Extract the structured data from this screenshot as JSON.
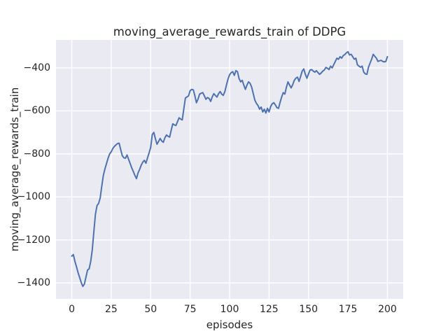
{
  "figure": {
    "title": "moving_average_rewards_train of DDPG",
    "xlabel": "episodes",
    "ylabel": "moving_average_rewards_train"
  },
  "style": {
    "figure_background": "#ffffff",
    "plot_background": "#eaeaf2",
    "grid_color": "#ffffff",
    "line_color": "#4c72b0",
    "text_color": "#262626"
  },
  "chart_data": {
    "type": "line",
    "title": "moving_average_rewards_train of DDPG",
    "xlabel": "episodes",
    "ylabel": "moving_average_rewards_train",
    "xlim": [
      -10,
      210
    ],
    "ylim": [
      -1474,
      -270
    ],
    "grid": true,
    "legend_position": "none",
    "xticks": {
      "values": [
        0,
        25,
        50,
        75,
        100,
        125,
        150,
        175,
        200
      ],
      "labels": [
        "0",
        "25",
        "50",
        "75",
        "100",
        "125",
        "150",
        "175",
        "200"
      ]
    },
    "yticks": {
      "values": [
        -400,
        -600,
        -800,
        -1000,
        -1200,
        -1400
      ],
      "labels": [
        "−400",
        "−600",
        "−800",
        "−1000",
        "−1200",
        "−1400"
      ]
    },
    "series": [
      {
        "name": "moving_average_rewards_train",
        "x": [
          0,
          1,
          2,
          3,
          4,
          5,
          6,
          7,
          8,
          9,
          10,
          11,
          12,
          13,
          14,
          15,
          16,
          17,
          18,
          19,
          20,
          21,
          22,
          23,
          24,
          25,
          26,
          27,
          28,
          29,
          30,
          31,
          32,
          33,
          34,
          35,
          36,
          37,
          38,
          39,
          40,
          41,
          42,
          43,
          44,
          45,
          46,
          47,
          48,
          49,
          50,
          51,
          52,
          53,
          54,
          55,
          56,
          57,
          58,
          59,
          60,
          61,
          62,
          63,
          64,
          65,
          66,
          67,
          68,
          69,
          70,
          71,
          72,
          73,
          74,
          75,
          76,
          77,
          78,
          79,
          80,
          81,
          82,
          83,
          84,
          85,
          86,
          87,
          88,
          89,
          90,
          91,
          92,
          93,
          94,
          95,
          96,
          97,
          98,
          99,
          100,
          101,
          102,
          103,
          104,
          105,
          106,
          107,
          108,
          109,
          110,
          111,
          112,
          113,
          114,
          115,
          116,
          117,
          118,
          119,
          120,
          121,
          122,
          123,
          124,
          125,
          126,
          127,
          128,
          129,
          130,
          131,
          132,
          133,
          134,
          135,
          136,
          137,
          138,
          139,
          140,
          141,
          142,
          143,
          144,
          145,
          146,
          147,
          148,
          149,
          150,
          151,
          152,
          153,
          154,
          155,
          156,
          157,
          158,
          159,
          160,
          161,
          162,
          163,
          164,
          165,
          166,
          167,
          168,
          169,
          170,
          171,
          172,
          173,
          174,
          175,
          176,
          177,
          178,
          179,
          180,
          181,
          182,
          183,
          184,
          185,
          186,
          187,
          188,
          189,
          190,
          191,
          192,
          193,
          194,
          195,
          196,
          197,
          198,
          199,
          200
        ],
        "y": [
          -1275,
          -1268,
          -1300,
          -1325,
          -1352,
          -1375,
          -1398,
          -1416,
          -1405,
          -1372,
          -1340,
          -1334,
          -1300,
          -1245,
          -1160,
          -1080,
          -1040,
          -1030,
          -1005,
          -950,
          -900,
          -870,
          -845,
          -820,
          -800,
          -790,
          -775,
          -765,
          -758,
          -752,
          -750,
          -780,
          -808,
          -818,
          -820,
          -805,
          -825,
          -845,
          -865,
          -882,
          -900,
          -915,
          -888,
          -872,
          -852,
          -838,
          -830,
          -843,
          -818,
          -795,
          -770,
          -710,
          -700,
          -730,
          -755,
          -742,
          -728,
          -740,
          -746,
          -725,
          -712,
          -718,
          -722,
          -690,
          -660,
          -665,
          -668,
          -650,
          -632,
          -638,
          -642,
          -590,
          -540,
          -535,
          -530,
          -506,
          -500,
          -502,
          -530,
          -562,
          -545,
          -522,
          -518,
          -515,
          -530,
          -546,
          -538,
          -542,
          -556,
          -535,
          -520,
          -528,
          -536,
          -520,
          -510,
          -522,
          -528,
          -510,
          -480,
          -452,
          -432,
          -422,
          -418,
          -435,
          -413,
          -418,
          -450,
          -465,
          -458,
          -480,
          -500,
          -480,
          -465,
          -472,
          -490,
          -520,
          -550,
          -565,
          -575,
          -592,
          -582,
          -605,
          -592,
          -610,
          -588,
          -605,
          -580,
          -567,
          -562,
          -572,
          -585,
          -588,
          -560,
          -535,
          -515,
          -522,
          -490,
          -465,
          -480,
          -493,
          -478,
          -458,
          -448,
          -443,
          -463,
          -440,
          -415,
          -405,
          -430,
          -448,
          -428,
          -410,
          -408,
          -415,
          -420,
          -413,
          -422,
          -430,
          -424,
          -415,
          -410,
          -398,
          -402,
          -408,
          -392,
          -400,
          -385,
          -370,
          -355,
          -360,
          -348,
          -355,
          -343,
          -338,
          -330,
          -325,
          -340,
          -337,
          -348,
          -360,
          -355,
          -386,
          -392,
          -397,
          -392,
          -420,
          -428,
          -430,
          -397,
          -378,
          -360,
          -337,
          -346,
          -355,
          -370,
          -367,
          -365,
          -370,
          -372,
          -370,
          -348
        ]
      }
    ]
  }
}
